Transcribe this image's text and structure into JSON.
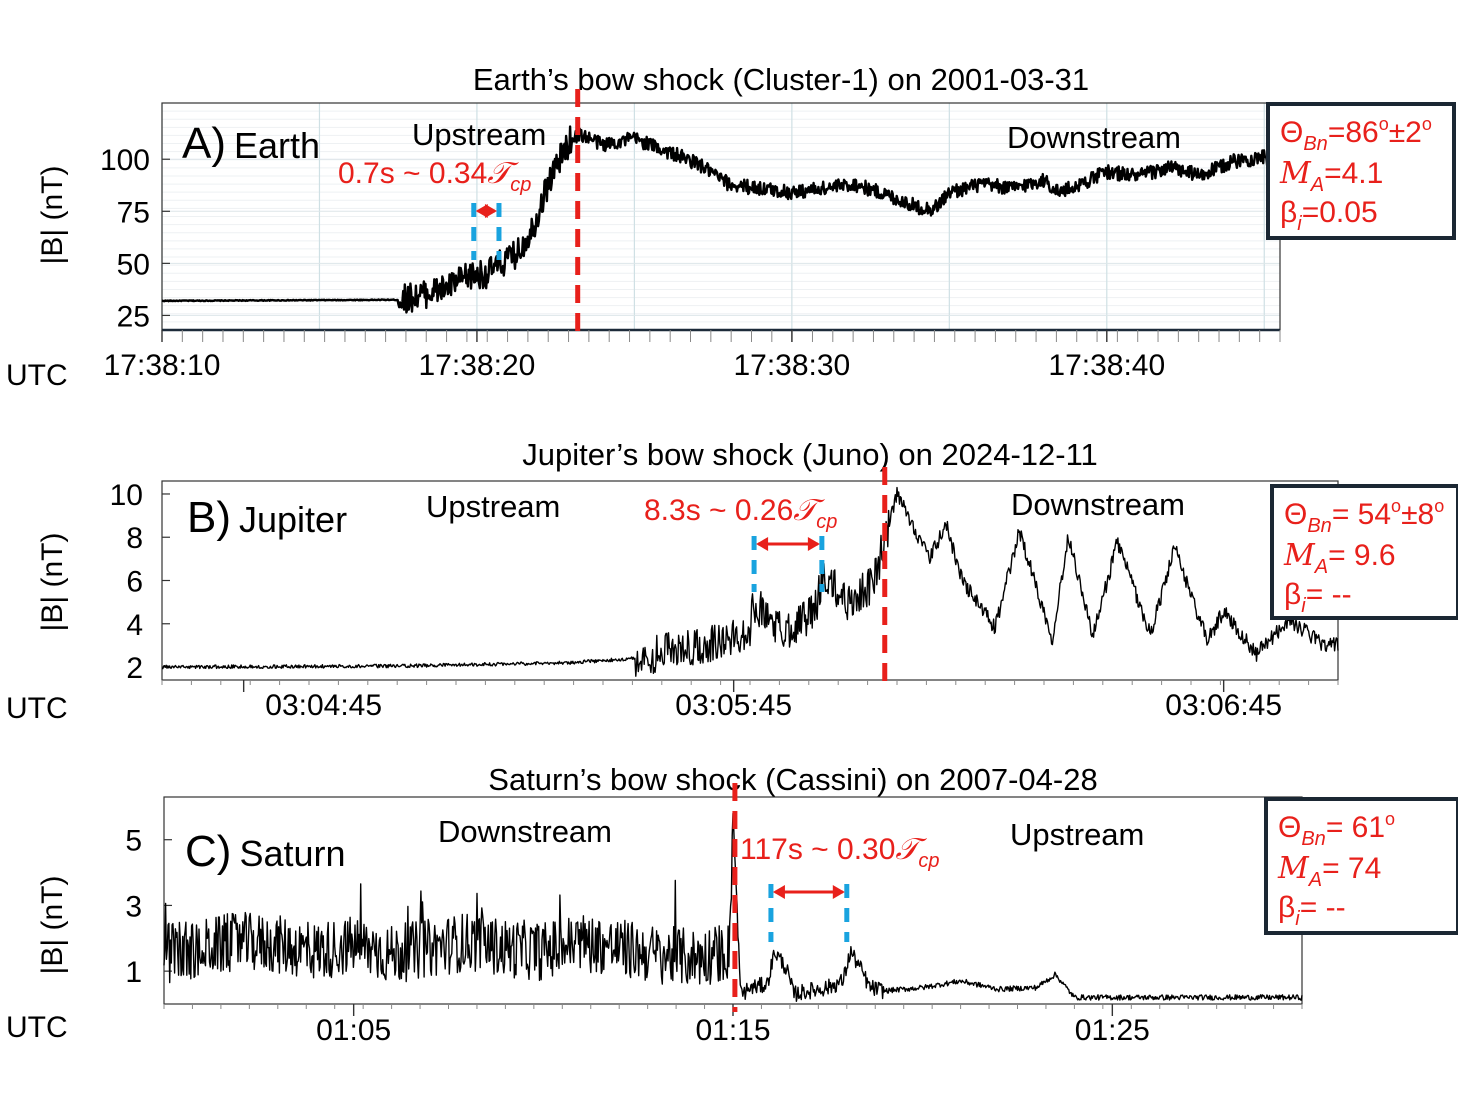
{
  "chart_data": [
    {
      "type": "line",
      "title": "Earth’s bow shock (Cluster-1) on 2001-03-31",
      "panel_letter": "A)",
      "panel_name": "Earth",
      "ylabel": "|B| (nT)",
      "xlabel": "UTC",
      "yticks": [
        "25",
        "50",
        "75",
        "100"
      ],
      "ytick_values": [
        25,
        50,
        75,
        100
      ],
      "ylim": [
        18,
        127
      ],
      "xticks": [
        "17:38:10",
        "17:38:20",
        "17:38:30",
        "17:38:40"
      ],
      "xtick_values": [
        0,
        10,
        20,
        30
      ],
      "xlim": [
        0,
        35.5
      ],
      "grid": true,
      "regions": [
        "Upstream",
        "Downstream"
      ],
      "annotation": {
        "text": "0.7s ~ 0.34",
        "symbol": "𝒯",
        "sub": "cp"
      },
      "shock_time": 13.2,
      "interval": [
        9.9,
        10.7
      ],
      "params": {
        "theta_sym": "Θ",
        "theta_sub": "Bn",
        "theta_val": "=86",
        "theta_sup": "o",
        "theta_err": "±2",
        "theta_err_sup": "o",
        "ma_sym": "M",
        "ma_sub": "A",
        "ma_val": "=4.1",
        "beta_sym": "β",
        "beta_sub": "i",
        "beta_val": "=0.05"
      },
      "series": {
        "x": [
          0,
          7.5,
          8,
          9,
          9.8,
          10.3,
          11.3,
          11.8,
          12.3,
          12.7,
          13,
          13.3,
          14,
          15,
          16,
          17,
          17.5,
          18,
          19,
          20,
          21,
          22,
          23,
          24,
          24.5,
          25,
          26,
          27,
          28,
          28.5,
          29,
          30,
          31,
          32,
          33,
          34,
          35,
          35.5
        ],
        "y": [
          32,
          32.5,
          34,
          38,
          44,
          45,
          55,
          68,
          90,
          102,
          110,
          112,
          107,
          110,
          104,
          98,
          93,
          88,
          86,
          84,
          86,
          88,
          83,
          77,
          76,
          84,
          88,
          86,
          90,
          84,
          87,
          94,
          92,
          96,
          92,
          99,
          101,
          95
        ]
      }
    },
    {
      "type": "line",
      "title": "Jupiter’s bow shock (Juno) on 2024-12-11",
      "panel_letter": "B)",
      "panel_name": "Jupiter",
      "ylabel": "|B| (nT)",
      "xlabel": "UTC",
      "yticks": [
        "2",
        "4",
        "6",
        "8",
        "10"
      ],
      "ytick_values": [
        2,
        4,
        6,
        8,
        10
      ],
      "ylim": [
        1.4,
        10.6
      ],
      "xticks": [
        "03:04:45",
        "03:05:45",
        "03:06:45"
      ],
      "xtick_values": [
        0,
        60,
        120
      ],
      "xlim": [
        -10,
        134
      ],
      "grid": false,
      "regions": [
        "Upstream",
        "Downstream"
      ],
      "annotation": {
        "text": "8.3s ~ 0.26",
        "symbol": "𝒯",
        "sub": "cp"
      },
      "shock_time": 78.5,
      "interval": [
        62.5,
        70.8
      ],
      "params": {
        "theta_sym": "Θ",
        "theta_sub": "Bn",
        "theta_val": "= 54",
        "theta_sup": "o",
        "theta_err": "±8",
        "theta_err_sup": "o",
        "ma_sym": "M",
        "ma_sub": "A",
        "ma_val": "= 9.6",
        "beta_sym": "β",
        "beta_sub": "i",
        "beta_val": "= --"
      },
      "series": {
        "x": [
          -10,
          20,
          40,
          48,
          55,
          60,
          62,
          62.5,
          66,
          70,
          70.8,
          74,
          77,
          79,
          80,
          84,
          86,
          88,
          92,
          95,
          99,
          101,
          104,
          107,
          111,
          114,
          118,
          120,
          124,
          128,
          132,
          134
        ],
        "y": [
          2.0,
          2.05,
          2.2,
          2.4,
          3.0,
          3.3,
          3.8,
          5.0,
          3.6,
          4.6,
          6.2,
          5.0,
          5.8,
          8.5,
          10.0,
          7.0,
          8.6,
          6.0,
          3.8,
          8.3,
          3.3,
          8.1,
          3.4,
          7.8,
          3.5,
          7.5,
          3.2,
          4.6,
          2.6,
          4.2,
          3.1,
          3.0
        ]
      }
    },
    {
      "type": "line",
      "title": "Saturn’s bow shock (Cassini) on 2007-04-28",
      "panel_letter": "C)",
      "panel_name": "Saturn",
      "ylabel": "|B| (nT)",
      "xlabel": "UTC",
      "yticks": [
        "1",
        "3",
        "5"
      ],
      "ytick_values": [
        1,
        3,
        5
      ],
      "ylim": [
        0,
        6.3
      ],
      "xticks": [
        "01:05",
        "01:15",
        "01:25"
      ],
      "xtick_values": [
        5,
        15,
        25
      ],
      "xlim": [
        0,
        30
      ],
      "grid": false,
      "regions": [
        "Downstream",
        "Upstream"
      ],
      "annotation": {
        "text": "117s ~ 0.30",
        "symbol": "𝒯",
        "sub": "cp"
      },
      "shock_time": 15.05,
      "interval": [
        16.0,
        18.0
      ],
      "params": {
        "theta_sym": "Θ",
        "theta_sub": "Bn",
        "theta_val": "= 61",
        "theta_sup": "o",
        "theta_err": "",
        "theta_err_sup": "",
        "ma_sym": "M",
        "ma_sub": "A",
        "ma_val": "= 74",
        "beta_sym": "β",
        "beta_sub": "i",
        "beta_val": "= --"
      },
      "series": {
        "x": [
          0,
          1,
          2,
          3,
          4,
          5,
          6,
          7,
          8,
          9,
          10,
          11,
          12,
          13,
          14,
          14.9,
          15.0,
          15.2,
          15.5,
          15.9,
          16.1,
          16.4,
          16.6,
          17,
          17.5,
          17.9,
          18.1,
          18.4,
          18.6,
          19,
          20,
          21,
          22,
          23,
          23.5,
          24,
          25,
          26,
          27,
          28,
          29,
          30
        ],
        "y": [
          1.5,
          1.7,
          1.9,
          1.8,
          1.6,
          1.8,
          1.5,
          1.7,
          1.9,
          1.7,
          1.6,
          1.9,
          1.7,
          1.5,
          1.4,
          1.6,
          5.8,
          0.3,
          0.5,
          0.6,
          1.6,
          1.1,
          0.3,
          0.4,
          0.5,
          0.7,
          1.6,
          1.0,
          0.5,
          0.4,
          0.5,
          0.7,
          0.45,
          0.5,
          0.9,
          0.2,
          0.2,
          0.2,
          0.2,
          0.2,
          0.2,
          0.2
        ]
      }
    }
  ]
}
